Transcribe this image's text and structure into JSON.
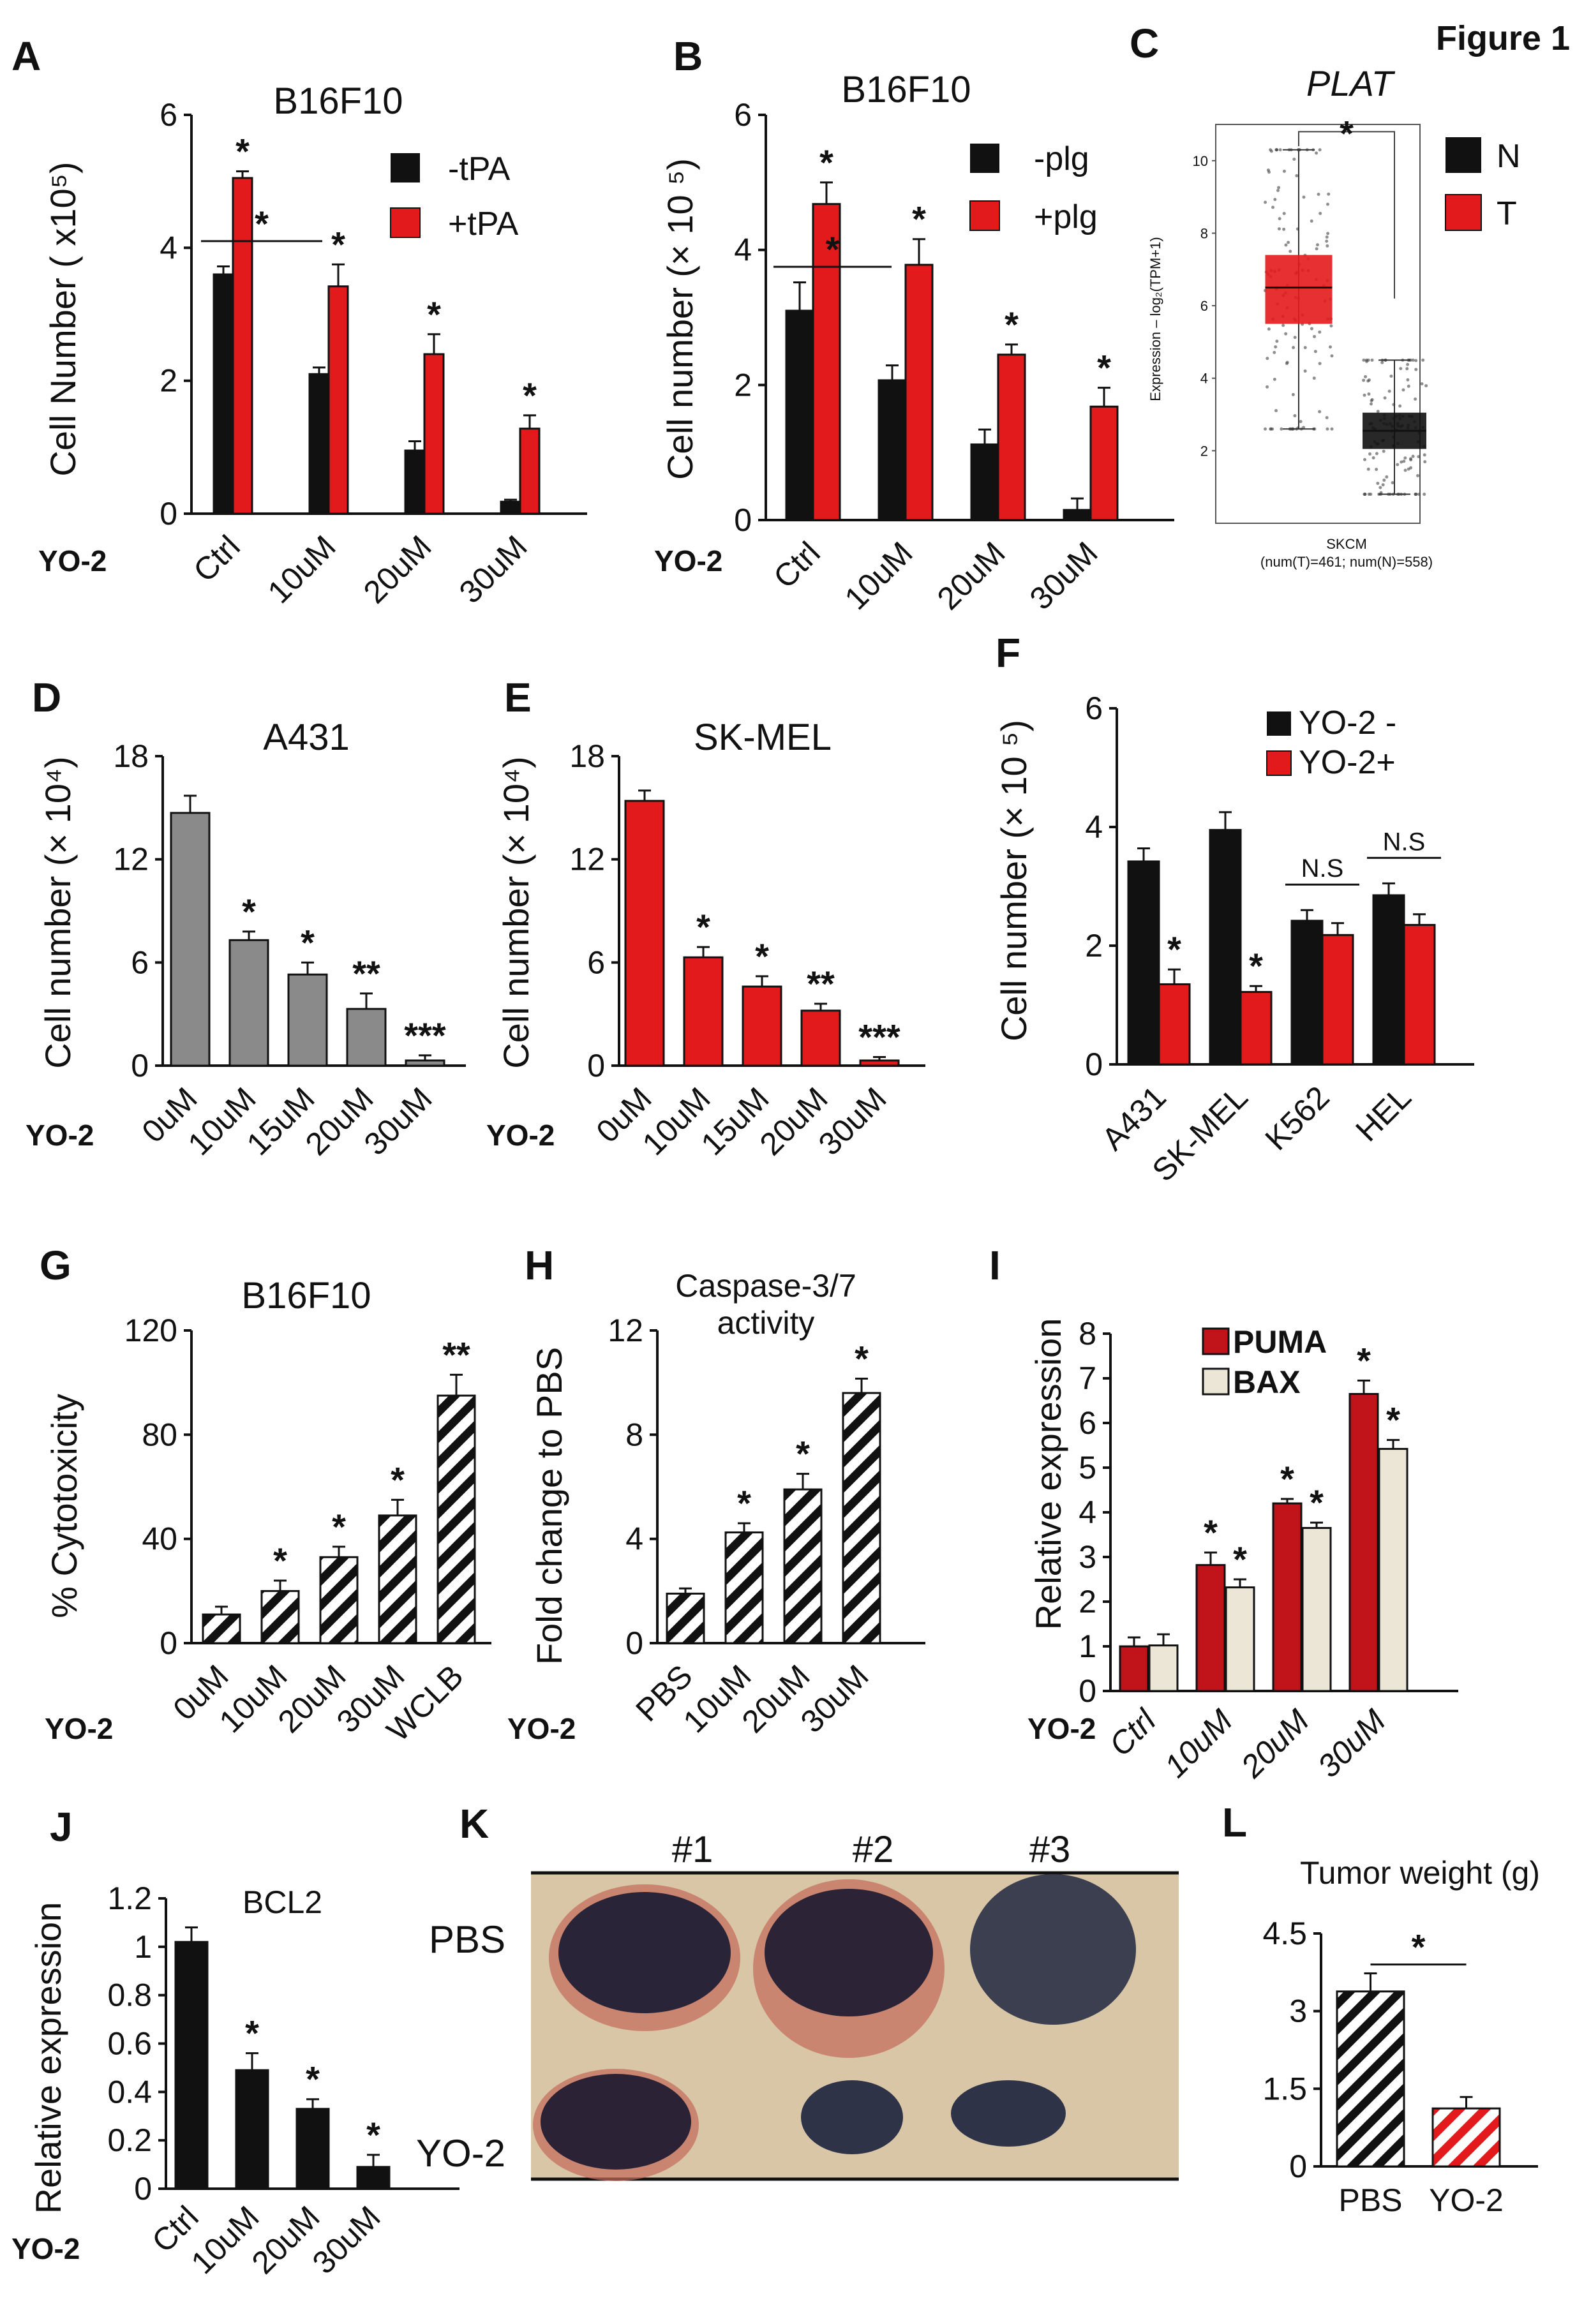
{
  "figure_label": "Figure 1",
  "treatment_label": "YO-2",
  "colors": {
    "red": "#e31a1c",
    "black": "#111111",
    "gray": "#8a8a8a",
    "beige": "#ece6d6",
    "dark_red": "#c0141a"
  },
  "chart_data": [
    {
      "panel": "A",
      "type": "bar",
      "title": "B16F10",
      "ylabel": "Cell Number ( x10⁵)",
      "ylim": [
        0,
        6
      ],
      "yticks": [
        0,
        2,
        4,
        6
      ],
      "categories": [
        "Ctrl",
        "10uM",
        "20uM",
        "30uM"
      ],
      "series": [
        {
          "name": "-tPA",
          "color": "black",
          "values": [
            3.6,
            2.1,
            0.95,
            0.18
          ],
          "errors": [
            0.12,
            0.1,
            0.14,
            0.03
          ]
        },
        {
          "name": "+tPA",
          "color": "red",
          "values": [
            5.05,
            3.42,
            2.4,
            1.28
          ],
          "errors": [
            0.1,
            0.33,
            0.3,
            0.2
          ]
        }
      ],
      "stars": [
        {
          "cat": 0,
          "series": 1,
          "text": "*"
        },
        {
          "cat": 1,
          "series": 1,
          "text": "*"
        },
        {
          "cat": 2,
          "series": 1,
          "text": "*"
        },
        {
          "cat": 3,
          "series": 1,
          "text": "*"
        }
      ],
      "bracket": {
        "y": 4.1,
        "text": "*"
      }
    },
    {
      "panel": "B",
      "type": "bar",
      "title": "B16F10",
      "ylabel": "Cell number (× 10 ⁵)",
      "ylim": [
        0,
        6
      ],
      "yticks": [
        0,
        2,
        4,
        6
      ],
      "categories": [
        "Ctrl",
        "10uM",
        "20uM",
        "30uM"
      ],
      "series": [
        {
          "name": "-plg",
          "color": "black",
          "values": [
            3.1,
            2.07,
            1.12,
            0.15
          ],
          "errors": [
            0.42,
            0.22,
            0.22,
            0.17
          ]
        },
        {
          "name": "+plg",
          "color": "red",
          "values": [
            4.68,
            3.78,
            2.45,
            1.68
          ],
          "errors": [
            0.32,
            0.38,
            0.15,
            0.28
          ]
        }
      ],
      "stars": [
        {
          "cat": 0,
          "series": 1,
          "text": "*"
        },
        {
          "cat": 1,
          "series": 1,
          "text": "*"
        },
        {
          "cat": 2,
          "series": 1,
          "text": "*"
        },
        {
          "cat": 3,
          "series": 1,
          "text": "*"
        }
      ],
      "bracket": {
        "y": 3.75,
        "text": "*"
      }
    },
    {
      "panel": "C",
      "type": "box",
      "title": "PLAT",
      "ylabel": "Expression – log₂(TPM+1)",
      "xlabel": "SKCM",
      "note": "(num(T)=461; num(N)=558)",
      "ylim": [
        0,
        11
      ],
      "yticks": [
        2,
        4,
        6,
        8,
        10
      ],
      "groups": [
        {
          "name": "T",
          "color": "red",
          "q1": 5.5,
          "median": 6.5,
          "q3": 7.4,
          "low": 2.6,
          "high": 10.3
        },
        {
          "name": "N",
          "color": "black",
          "q1": 2.05,
          "median": 2.55,
          "q3": 3.05,
          "low": 0.8,
          "high": 4.5
        }
      ],
      "legend": [
        "N",
        "T"
      ],
      "sig": "*"
    },
    {
      "panel": "D",
      "type": "bar",
      "title": "A431",
      "ylabel": "Cell number (× 10⁴)",
      "ylim": [
        0,
        18
      ],
      "yticks": [
        0,
        6,
        12,
        18
      ],
      "categories": [
        "0uM",
        "10uM",
        "15uM",
        "20uM",
        "30uM"
      ],
      "series": [
        {
          "name": "YO-2",
          "color": "gray",
          "values": [
            14.7,
            7.3,
            5.3,
            3.3,
            0.3
          ],
          "errors": [
            1.0,
            0.5,
            0.7,
            0.9,
            0.3
          ]
        }
      ],
      "stars": [
        {
          "cat": 1,
          "series": 0,
          "text": "*"
        },
        {
          "cat": 2,
          "series": 0,
          "text": "*"
        },
        {
          "cat": 3,
          "series": 0,
          "text": "**"
        },
        {
          "cat": 4,
          "series": 0,
          "text": "***"
        }
      ]
    },
    {
      "panel": "E",
      "type": "bar",
      "title": "SK-MEL",
      "ylabel": "Cell number (× 10⁴)",
      "ylim": [
        0,
        18
      ],
      "yticks": [
        0,
        6,
        12,
        18
      ],
      "categories": [
        "0uM",
        "10uM",
        "15uM",
        "20uM",
        "30uM"
      ],
      "series": [
        {
          "name": "YO-2",
          "color": "red",
          "values": [
            15.4,
            6.3,
            4.6,
            3.2,
            0.3
          ],
          "errors": [
            0.6,
            0.6,
            0.6,
            0.4,
            0.2
          ]
        }
      ],
      "stars": [
        {
          "cat": 1,
          "series": 0,
          "text": "*"
        },
        {
          "cat": 2,
          "series": 0,
          "text": "*"
        },
        {
          "cat": 3,
          "series": 0,
          "text": "**"
        },
        {
          "cat": 4,
          "series": 0,
          "text": "***"
        }
      ]
    },
    {
      "panel": "F",
      "type": "bar",
      "ylabel": "Cell number (× 10 ⁵)",
      "ylim": [
        0,
        6
      ],
      "yticks": [
        0,
        2,
        4,
        6
      ],
      "categories": [
        "A431",
        "SK-MEL",
        "K562",
        "HEL"
      ],
      "series": [
        {
          "name": "YO-2 -",
          "color": "black",
          "values": [
            3.42,
            3.95,
            2.42,
            2.85
          ],
          "errors": [
            0.22,
            0.3,
            0.18,
            0.2
          ]
        },
        {
          "name": "YO-2+",
          "color": "red",
          "values": [
            1.35,
            1.22,
            2.18,
            2.35
          ],
          "errors": [
            0.25,
            0.1,
            0.2,
            0.18
          ]
        }
      ],
      "stars": [
        {
          "cat": 0,
          "series": 1,
          "text": "*"
        },
        {
          "cat": 1,
          "series": 1,
          "text": "*"
        }
      ],
      "ns": [
        {
          "cat": 2,
          "text": "N.S"
        },
        {
          "cat": 3,
          "text": "N.S"
        }
      ]
    },
    {
      "panel": "G",
      "type": "bar",
      "title": "B16F10",
      "ylabel": "% Cytotoxicity",
      "ylim": [
        0,
        120
      ],
      "yticks": [
        0,
        40,
        80,
        120
      ],
      "categories": [
        "0uM",
        "10uM",
        "20uM",
        "30uM",
        "WCLB"
      ],
      "series": [
        {
          "name": "YO-2",
          "color": "hatch",
          "values": [
            11,
            20,
            33,
            49,
            95
          ],
          "errors": [
            3,
            4,
            4,
            6,
            8
          ]
        }
      ],
      "stars": [
        {
          "cat": 1,
          "series": 0,
          "text": "*"
        },
        {
          "cat": 2,
          "series": 0,
          "text": "*"
        },
        {
          "cat": 3,
          "series": 0,
          "text": "*"
        },
        {
          "cat": 4,
          "series": 0,
          "text": "**"
        }
      ]
    },
    {
      "panel": "H",
      "type": "bar",
      "title": "Caspase-3/7",
      "subtitle": "activity",
      "ylabel": "Fold change to PBS",
      "ylim": [
        0,
        12
      ],
      "yticks": [
        0,
        4,
        8,
        12
      ],
      "categories": [
        "PBS",
        "10uM",
        "20uM",
        "30uM"
      ],
      "series": [
        {
          "name": "YO-2",
          "color": "hatch",
          "values": [
            1.9,
            4.25,
            5.9,
            9.6
          ],
          "errors": [
            0.2,
            0.35,
            0.6,
            0.55
          ]
        }
      ],
      "stars": [
        {
          "cat": 1,
          "series": 0,
          "text": "*"
        },
        {
          "cat": 2,
          "series": 0,
          "text": "*"
        },
        {
          "cat": 3,
          "series": 0,
          "text": "*"
        }
      ]
    },
    {
      "panel": "I",
      "type": "bar",
      "ylabel": "Relative expression",
      "ylim": [
        0,
        8
      ],
      "yticks": [
        0,
        1,
        2,
        3,
        4,
        5,
        6,
        7,
        8
      ],
      "categories": [
        "Ctrl",
        "10uM",
        "20uM",
        "30uM"
      ],
      "series": [
        {
          "name": "PUMA",
          "color": "dark_red",
          "values": [
            1.0,
            2.82,
            4.2,
            6.65
          ],
          "errors": [
            0.2,
            0.28,
            0.1,
            0.3
          ]
        },
        {
          "name": "BAX",
          "color": "beige",
          "values": [
            1.02,
            2.32,
            3.65,
            5.42
          ],
          "errors": [
            0.25,
            0.18,
            0.12,
            0.2
          ]
        }
      ],
      "stars": [
        {
          "cat": 1,
          "series": 0,
          "text": "*"
        },
        {
          "cat": 1,
          "series": 1,
          "text": "*"
        },
        {
          "cat": 2,
          "series": 0,
          "text": "*"
        },
        {
          "cat": 2,
          "series": 1,
          "text": "*"
        },
        {
          "cat": 3,
          "series": 0,
          "text": "*"
        },
        {
          "cat": 3,
          "series": 1,
          "text": "*"
        }
      ]
    },
    {
      "panel": "J",
      "type": "bar",
      "ylabel": "Relative expression",
      "annotation": "BCL2",
      "ylim": [
        0,
        1.2
      ],
      "yticks": [
        0,
        0.2,
        0.4,
        0.6,
        0.8,
        1,
        1.2
      ],
      "categories": [
        "Ctrl",
        "10uM",
        "20uM",
        "30uM"
      ],
      "series": [
        {
          "name": "BCL2",
          "color": "black",
          "values": [
            1.02,
            0.49,
            0.33,
            0.09
          ],
          "errors": [
            0.06,
            0.07,
            0.04,
            0.05
          ]
        }
      ],
      "stars": [
        {
          "cat": 1,
          "series": 0,
          "text": "*"
        },
        {
          "cat": 2,
          "series": 0,
          "text": "*"
        },
        {
          "cat": 3,
          "series": 0,
          "text": "*"
        }
      ]
    },
    {
      "panel": "L",
      "type": "bar",
      "title": "Tumor weight (g)",
      "ylim": [
        0,
        4.5
      ],
      "yticks": [
        0,
        1.5,
        3,
        4.5
      ],
      "categories": [
        "PBS",
        "YO-2"
      ],
      "series": [
        {
          "name": "weight",
          "color": "hatch",
          "values": [
            3.38,
            1.12
          ],
          "errors": [
            0.35,
            0.22
          ]
        }
      ],
      "bracket": {
        "y": 3.9,
        "text": "*"
      }
    }
  ],
  "photo": {
    "panel": "K",
    "columns": [
      "#1",
      "#2",
      "#3"
    ],
    "rows": [
      "PBS",
      "YO-2"
    ]
  },
  "ytick_labels": {
    "A": [
      "0",
      "2",
      "4",
      "6"
    ],
    "B": [
      "0",
      "2",
      "4",
      "6"
    ],
    "C": [
      "2",
      "4",
      "6",
      "8",
      "10"
    ],
    "D": [
      "0",
      "6",
      "12",
      "18"
    ],
    "E": [
      "0",
      "6",
      "12",
      "18"
    ],
    "F": [
      "0",
      "2",
      "4",
      "6"
    ],
    "G": [
      "0",
      "40",
      "80",
      "120"
    ],
    "H": [
      "0",
      "4",
      "8",
      "12"
    ],
    "I": [
      "0",
      "1",
      "2",
      "3",
      "4",
      "5",
      "6",
      "7",
      "8"
    ],
    "J": [
      "0",
      "0.2",
      "0.4",
      "0.6",
      "0.8",
      "1",
      "1.2"
    ],
    "L": [
      "0",
      "1.5",
      "3",
      "4.5"
    ]
  }
}
